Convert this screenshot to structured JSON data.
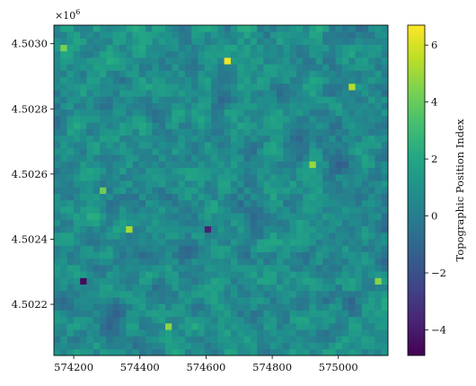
{
  "chart_data": {
    "type": "heatmap",
    "title": "",
    "xlabel": "",
    "ylabel": "",
    "y_offset_text": "×10",
    "y_offset_exponent": "6",
    "x_range": [
      574140,
      575150
    ],
    "y_range": [
      4502043,
      4503057
    ],
    "x_ticks": [
      "574200",
      "574400",
      "574600",
      "574800",
      "575000"
    ],
    "x_tick_values": [
      574200,
      574400,
      574600,
      574800,
      575000
    ],
    "y_ticks": [
      "4.5022",
      "4.5024",
      "4.5026",
      "4.5028",
      "4.5030"
    ],
    "y_tick_values": [
      4502200,
      4502400,
      4502600,
      4502800,
      4503000
    ],
    "grid": false,
    "colormap": "viridis",
    "colorbar": {
      "label": "Topographic Position Index",
      "range": [
        -4.9,
        6.7
      ],
      "ticks": [
        "−4",
        "−2",
        "0",
        "2",
        "4",
        "6"
      ],
      "tick_values": [
        -4,
        -2,
        0,
        2,
        4,
        6
      ]
    },
    "grid_cells": {
      "cols": 51,
      "rows": 51
    },
    "notable_cells": [
      {
        "x": 574655,
        "y": 4502944,
        "value": 6.5
      },
      {
        "x": 575035,
        "y": 4502871,
        "value": 5.4
      },
      {
        "x": 574365,
        "y": 4502428,
        "value": 5.2
      },
      {
        "x": 574925,
        "y": 4502632,
        "value": 4.9
      },
      {
        "x": 574285,
        "y": 4502545,
        "value": 4.1
      },
      {
        "x": 574175,
        "y": 4502992,
        "value": 4.3
      },
      {
        "x": 574495,
        "y": 4502137,
        "value": 4.7
      },
      {
        "x": 575125,
        "y": 4502262,
        "value": 4.6
      },
      {
        "x": 574225,
        "y": 4502278,
        "value": -4.6
      },
      {
        "x": 574605,
        "y": 4502428,
        "value": -3.8
      }
    ]
  }
}
